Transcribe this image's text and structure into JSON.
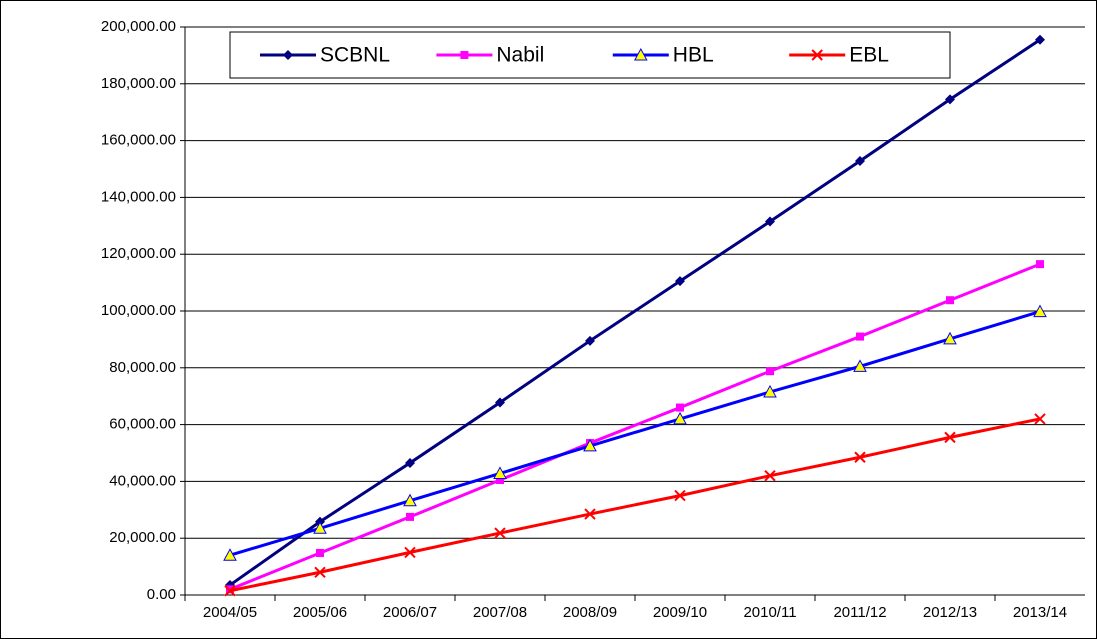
{
  "chart_data": {
    "type": "line",
    "categories": [
      "2004/05",
      "2005/06",
      "2006/07",
      "2007/08",
      "2008/09",
      "2009/10",
      "2010/11",
      "2011/12",
      "2012/13",
      "2013/14"
    ],
    "series": [
      {
        "name": "SCBNL",
        "color": "#000080",
        "marker": "diamond",
        "values": [
          3500,
          25800,
          46500,
          67800,
          89500,
          110500,
          131500,
          152800,
          174500,
          195500
        ]
      },
      {
        "name": "Nabil",
        "color": "#ff00ff",
        "marker": "square",
        "values": [
          2000,
          14800,
          27500,
          40500,
          53500,
          66000,
          78800,
          91000,
          103800,
          116500
        ]
      },
      {
        "name": "HBL",
        "color": "#0000ff",
        "marker": "triangle",
        "values": [
          14000,
          23500,
          33200,
          42800,
          52500,
          62000,
          71500,
          80500,
          90200,
          99800
        ]
      },
      {
        "name": "EBL",
        "color": "#ff0000",
        "marker": "x",
        "values": [
          1500,
          8000,
          15000,
          21800,
          28500,
          35000,
          42000,
          48500,
          55500,
          62000
        ]
      }
    ],
    "ylim": [
      0,
      200000
    ],
    "yticks": [
      {
        "value": 0,
        "label": "0.00"
      },
      {
        "value": 20000,
        "label": "20,000.00"
      },
      {
        "value": 40000,
        "label": "40,000.00"
      },
      {
        "value": 60000,
        "label": "60,000.00"
      },
      {
        "value": 80000,
        "label": "80,000.00"
      },
      {
        "value": 100000,
        "label": "100,000.00"
      },
      {
        "value": 120000,
        "label": "120,000.00"
      },
      {
        "value": 140000,
        "label": "140,000.00"
      },
      {
        "value": 160000,
        "label": "160,000.00"
      },
      {
        "value": 180000,
        "label": "180,000.00"
      },
      {
        "value": 200000,
        "label": "200,000.00"
      }
    ],
    "grid": true,
    "legend": "top"
  }
}
